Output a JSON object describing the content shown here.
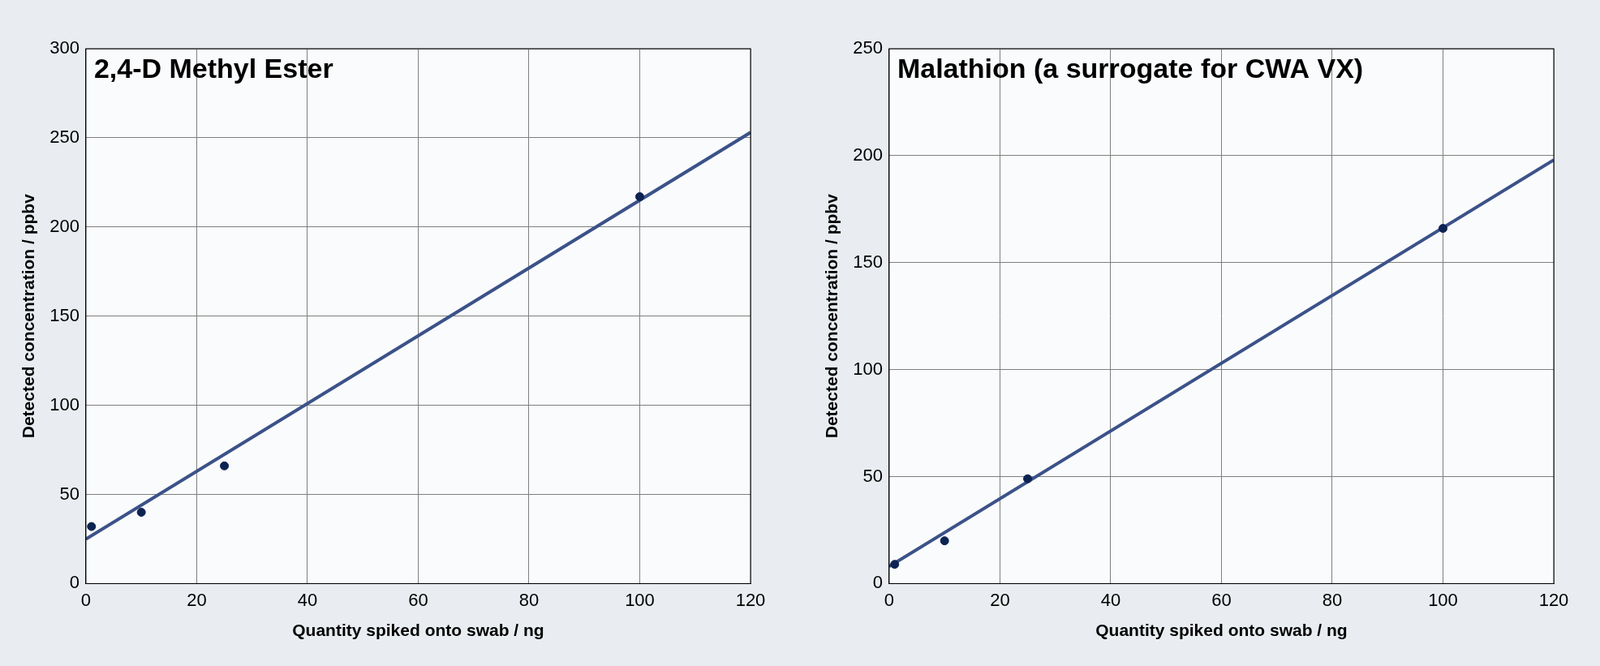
{
  "chart_data": [
    {
      "type": "scatter",
      "title": "2,4-D Methyl Ester",
      "x_label": "Quantity spiked onto swab / ng",
      "y_label": "Detected concentration / ppbv",
      "x": [
        1,
        10,
        25,
        100
      ],
      "values": [
        32,
        40,
        66,
        217
      ],
      "color": "#0d2352",
      "marker": "circle",
      "trendline": {
        "x": [
          0,
          120
        ],
        "values": [
          25,
          253
        ],
        "color": "#3b5289"
      },
      "xlim": [
        0,
        120
      ],
      "xticks": [
        0,
        20,
        40,
        60,
        80,
        100,
        120
      ],
      "ylim": [
        0,
        300
      ],
      "yticks": [
        0,
        50,
        100,
        150,
        200,
        250,
        300
      ],
      "grid": true
    },
    {
      "type": "scatter",
      "title": "Malathion (a surrogate for CWA VX)",
      "x_label": "Quantity spiked onto swab / ng",
      "y_label": "Detected concentration / ppbv",
      "x": [
        1,
        10,
        25,
        100
      ],
      "values": [
        9,
        20,
        49,
        166
      ],
      "color": "#0d2352",
      "marker": "circle",
      "trendline": {
        "x": [
          0,
          120
        ],
        "values": [
          8,
          198
        ],
        "color": "#3b5289"
      },
      "xlim": [
        0,
        120
      ],
      "xticks": [
        0,
        20,
        40,
        60,
        80,
        100,
        120
      ],
      "ylim": [
        0,
        250
      ],
      "yticks": [
        0,
        50,
        100,
        150,
        200,
        250
      ],
      "grid": true
    }
  ]
}
